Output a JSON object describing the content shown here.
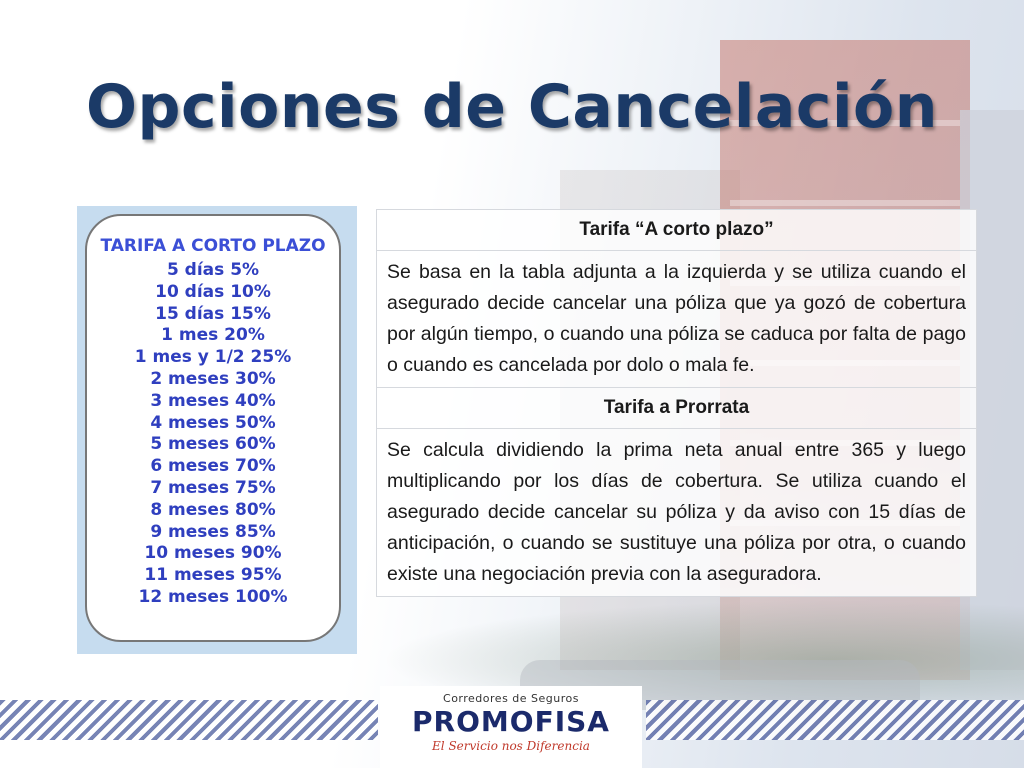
{
  "slide": {
    "title": "Opciones de Cancelación"
  },
  "rate_card": {
    "title": "TARIFA A CORTO PLAZO",
    "items": [
      "5 días 5%",
      "10 días 10%",
      "15 días 15%",
      "1 mes 20%",
      "1 mes y 1/2 25%",
      "2 meses 30%",
      "3 meses 40%",
      "4 meses 50%",
      "5 meses 60%",
      "6 meses 70%",
      "7 meses 75%",
      "8 meses 80%",
      "9 meses 85%",
      "10 meses 90%",
      "11 meses 95%",
      "12 meses 100%"
    ]
  },
  "info_table": {
    "short_term_header": "Tarifa “A corto plazo”",
    "short_term_text": "Se basa en la tabla adjunta a la izquierda y se utiliza cuando el asegurado decide cancelar una póliza que ya gozó de cobertura por algún tiempo, o cuando una póliza se caduca por falta de pago o cuando es cancelada por dolo o mala fe.",
    "prorata_header": "Tarifa a Prorrata",
    "prorata_text": "Se calcula dividiendo la prima neta anual entre 365 y luego multiplicando por los días de cobertura. Se utiliza cuando el asegurado decide cancelar su póliza y da aviso con 15 días de anticipación, o cuando se sustituye una póliza por otra, o cuando existe una negociación previa con la aseguradora."
  },
  "logo": {
    "small_text": "Corredores de Seguros",
    "name": "PROMOFISA",
    "tagline": "El Servicio nos Diferencia"
  }
}
